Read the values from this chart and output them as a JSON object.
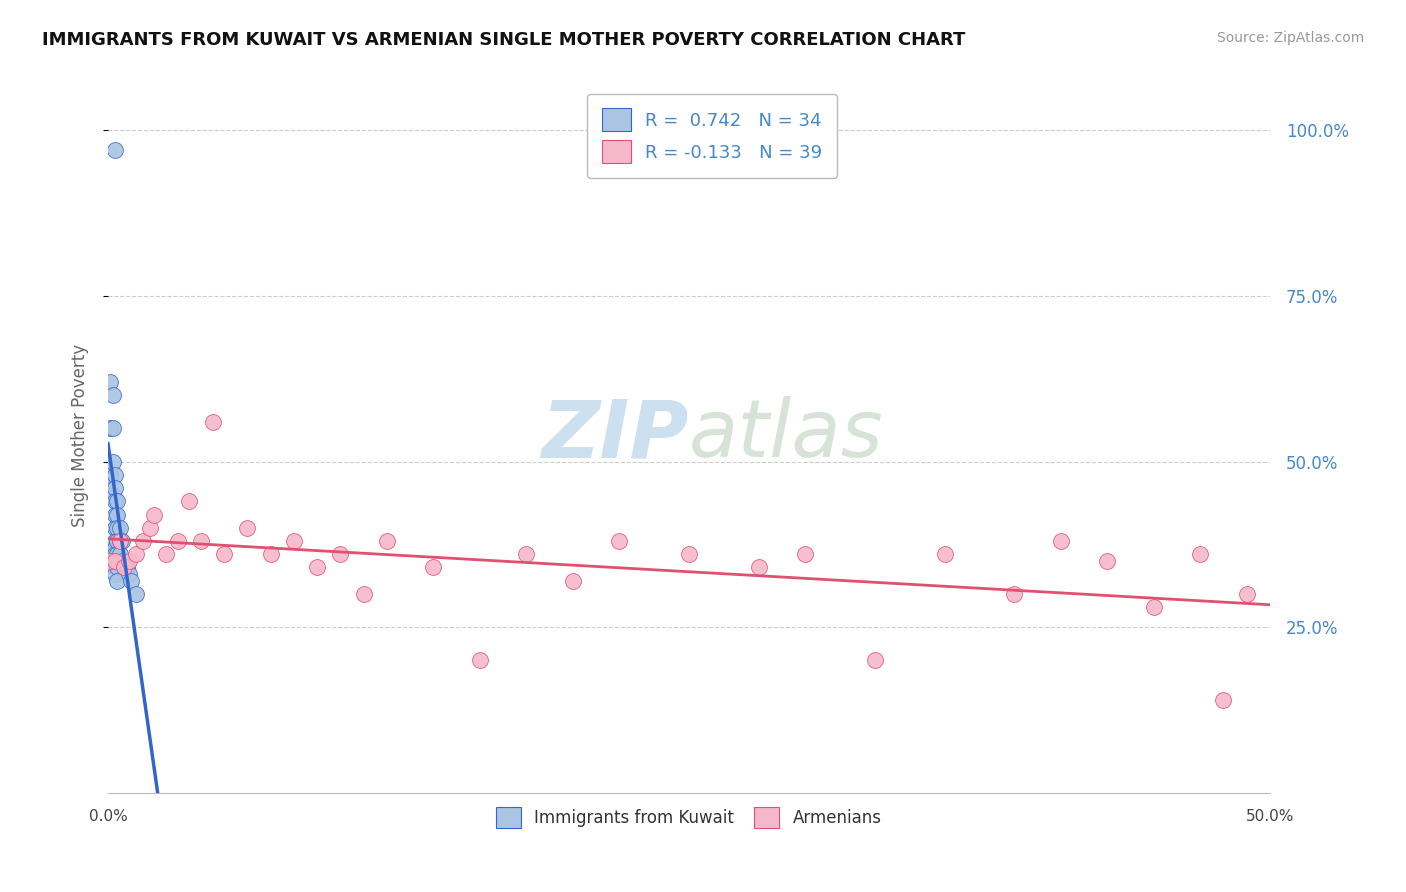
{
  "title": "IMMIGRANTS FROM KUWAIT VS ARMENIAN SINGLE MOTHER POVERTY CORRELATION CHART",
  "source": "Source: ZipAtlas.com",
  "ylabel": "Single Mother Poverty",
  "xmin": 0.0,
  "xmax": 0.5,
  "ymin": 0.0,
  "ymax": 1.08,
  "yticks": [
    0.25,
    0.5,
    0.75,
    1.0
  ],
  "ytick_labels": [
    "25.0%",
    "50.0%",
    "75.0%",
    "100.0%"
  ],
  "r_kuwait": 0.742,
  "n_kuwait": 34,
  "r_armenian": -0.133,
  "n_armenian": 39,
  "legend_labels": [
    "Immigrants from Kuwait",
    "Armenians"
  ],
  "kuwait_color": "#aac4e2",
  "armenian_color": "#f5b8cb",
  "kuwait_line_color": "#3366cc",
  "armenian_line_color": "#e05070",
  "background_color": "#ffffff",
  "watermark_text": "ZIPatlas",
  "watermark_color": "#cce0f0",
  "title_color": "#111111",
  "axis_label_color": "#666666",
  "right_tick_color": "#4488cc",
  "kuwait_x": [
    0.001,
    0.001,
    0.001,
    0.002,
    0.002,
    0.002,
    0.002,
    0.003,
    0.003,
    0.003,
    0.003,
    0.003,
    0.003,
    0.003,
    0.003,
    0.003,
    0.003,
    0.004,
    0.004,
    0.004,
    0.004,
    0.004,
    0.004,
    0.004,
    0.005,
    0.005,
    0.005,
    0.006,
    0.006,
    0.007,
    0.008,
    0.009,
    0.01,
    0.012
  ],
  "kuwait_y": [
    0.62,
    0.55,
    0.48,
    0.6,
    0.55,
    0.5,
    0.45,
    0.48,
    0.46,
    0.44,
    0.42,
    0.4,
    0.38,
    0.37,
    0.36,
    0.35,
    0.33,
    0.44,
    0.42,
    0.4,
    0.38,
    0.36,
    0.34,
    0.32,
    0.4,
    0.38,
    0.36,
    0.38,
    0.35,
    0.34,
    0.34,
    0.33,
    0.32,
    0.3
  ],
  "kuwait_high_x": [
    0.003
  ],
  "kuwait_high_y": [
    0.97
  ],
  "armenian_x": [
    0.001,
    0.003,
    0.005,
    0.007,
    0.009,
    0.012,
    0.015,
    0.018,
    0.02,
    0.025,
    0.03,
    0.035,
    0.04,
    0.045,
    0.05,
    0.06,
    0.07,
    0.08,
    0.09,
    0.1,
    0.11,
    0.12,
    0.14,
    0.16,
    0.18,
    0.2,
    0.22,
    0.25,
    0.28,
    0.3,
    0.33,
    0.36,
    0.39,
    0.41,
    0.43,
    0.45,
    0.47,
    0.48,
    0.49
  ],
  "armenian_y": [
    0.35,
    0.35,
    0.38,
    0.34,
    0.35,
    0.36,
    0.38,
    0.4,
    0.42,
    0.36,
    0.38,
    0.44,
    0.38,
    0.56,
    0.36,
    0.4,
    0.36,
    0.38,
    0.34,
    0.36,
    0.3,
    0.38,
    0.34,
    0.2,
    0.36,
    0.32,
    0.38,
    0.36,
    0.34,
    0.36,
    0.2,
    0.36,
    0.3,
    0.38,
    0.35,
    0.28,
    0.36,
    0.14,
    0.3
  ]
}
